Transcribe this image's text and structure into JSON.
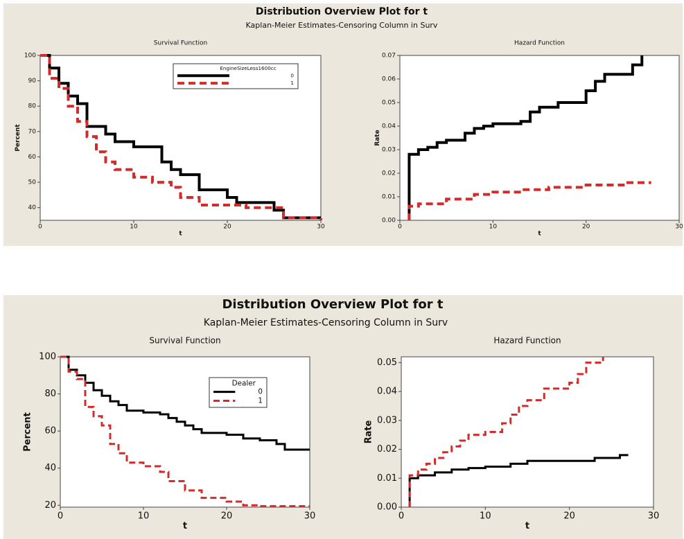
{
  "panels": [
    {
      "title": "Distribution Overview Plot for t",
      "subtitle": "Kaplan-Meier Estimates-Censoring Column in Surv"
    },
    {
      "title": "Distribution Overview Plot for t",
      "subtitle": "Kaplan-Meier Estimates-Censoring Column in Surv"
    }
  ],
  "chart_data": [
    {
      "type": "step",
      "title": "Survival Function",
      "xlabel": "t",
      "ylabel": "Percent",
      "xlim": [
        0,
        30
      ],
      "ylim": [
        35,
        100
      ],
      "xticks": [
        0,
        10,
        20,
        30
      ],
      "yticks": [
        40,
        50,
        60,
        70,
        80,
        90,
        100
      ],
      "legend_title": "EngineSizeLess1600cc",
      "legend": "upper right",
      "series": [
        {
          "name": "0",
          "color": "#000000",
          "style": "solid",
          "x": [
            0,
            1,
            2,
            3,
            4,
            5,
            7,
            8,
            10,
            13,
            14,
            15,
            17,
            20,
            21,
            25,
            26,
            30
          ],
          "values": [
            100,
            95,
            89,
            84,
            81,
            72,
            69,
            66,
            64,
            58,
            55,
            53,
            47,
            44,
            42,
            39,
            36,
            36
          ]
        },
        {
          "name": "1",
          "color": "#d42a2a",
          "style": "dashed",
          "x": [
            0,
            1,
            2,
            3,
            4,
            5,
            6,
            7,
            8,
            10,
            12,
            14,
            15,
            17,
            20,
            22,
            26,
            30
          ],
          "values": [
            100,
            91,
            87,
            80,
            74,
            68,
            62,
            58,
            55,
            52,
            50,
            48,
            44,
            41,
            41,
            40,
            36,
            35
          ]
        }
      ]
    },
    {
      "type": "step",
      "title": "Hazard Function",
      "xlabel": "t",
      "ylabel": "Rate",
      "xlim": [
        0,
        30
      ],
      "ylim": [
        0,
        0.07
      ],
      "xticks": [
        0,
        10,
        20,
        30
      ],
      "yticks": [
        {
          "value": 0,
          "label": "0.00"
        },
        0.01,
        0.02,
        0.03,
        0.04,
        0.05,
        0.06,
        0.07
      ],
      "series": [
        {
          "name": "0",
          "color": "#000000",
          "style": "solid",
          "x": [
            1,
            1,
            2,
            3,
            4,
            5,
            7,
            8,
            9,
            10,
            13,
            14,
            15,
            17,
            20,
            21,
            22,
            25,
            26
          ],
          "values": [
            0,
            0.028,
            0.03,
            0.031,
            0.033,
            0.034,
            0.037,
            0.039,
            0.04,
            0.041,
            0.042,
            0.046,
            0.048,
            0.05,
            0.055,
            0.059,
            0.062,
            0.066,
            0.07
          ]
        },
        {
          "name": "1",
          "color": "#d42a2a",
          "style": "dashed",
          "x": [
            1,
            1,
            2,
            5,
            8,
            10,
            13,
            16,
            20,
            24,
            27
          ],
          "values": [
            0,
            0.006,
            0.007,
            0.009,
            0.011,
            0.012,
            0.013,
            0.014,
            0.015,
            0.016,
            0.016
          ]
        }
      ]
    },
    {
      "type": "step",
      "title": "Survival Function",
      "xlabel": "t",
      "ylabel": "Percent",
      "xlim": [
        0,
        30
      ],
      "ylim": [
        19,
        100
      ],
      "xticks": [
        0,
        10,
        20,
        30
      ],
      "yticks": [
        20,
        40,
        60,
        80,
        100
      ],
      "legend_title": "Dealer",
      "legend": "upper right",
      "series": [
        {
          "name": "0",
          "color": "#000000",
          "style": "solid",
          "x": [
            0,
            1,
            2,
            3,
            4,
            5,
            6,
            7,
            8,
            10,
            12,
            13,
            14,
            15,
            16,
            17,
            20,
            22,
            24,
            26,
            27,
            30
          ],
          "values": [
            100,
            93,
            90,
            86,
            82,
            79,
            76,
            74,
            71,
            70,
            69,
            67,
            65,
            63,
            61,
            59,
            58,
            56,
            55,
            53,
            50,
            50
          ]
        },
        {
          "name": "1",
          "color": "#d42a2a",
          "style": "dashed",
          "x": [
            0,
            1,
            2,
            3,
            4,
            5,
            6,
            7,
            8,
            10,
            12,
            13,
            15,
            17,
            20,
            22,
            24,
            27,
            30
          ],
          "values": [
            100,
            92,
            88,
            73,
            68,
            63,
            53,
            48,
            43,
            41,
            38,
            33,
            28,
            24,
            22,
            20,
            19.5,
            19.5,
            19.5
          ]
        }
      ]
    },
    {
      "type": "step",
      "title": "Hazard Function",
      "xlabel": "t",
      "ylabel": "Rate",
      "xlim": [
        0,
        30
      ],
      "ylim": [
        0,
        0.052
      ],
      "xticks": [
        0,
        10,
        20,
        30
      ],
      "yticks": [
        {
          "value": 0,
          "label": "0.00"
        },
        0.01,
        0.02,
        0.03,
        0.04,
        0.05
      ],
      "series": [
        {
          "name": "0",
          "color": "#000000",
          "style": "solid",
          "x": [
            1,
            1,
            2,
            4,
            6,
            8,
            10,
            13,
            15,
            17,
            20,
            23,
            26,
            27
          ],
          "values": [
            0,
            0.01,
            0.011,
            0.012,
            0.013,
            0.0135,
            0.014,
            0.015,
            0.016,
            0.016,
            0.016,
            0.017,
            0.018,
            0.018
          ]
        },
        {
          "name": "1",
          "color": "#d42a2a",
          "style": "dashed",
          "x": [
            1,
            1,
            2,
            3,
            4,
            5,
            6,
            7,
            8,
            10,
            12,
            13,
            14,
            15,
            17,
            20,
            21,
            22,
            24
          ],
          "values": [
            0,
            0.011,
            0.013,
            0.015,
            0.017,
            0.019,
            0.021,
            0.023,
            0.025,
            0.026,
            0.029,
            0.032,
            0.035,
            0.037,
            0.041,
            0.043,
            0.046,
            0.05,
            0.052
          ]
        }
      ]
    }
  ]
}
